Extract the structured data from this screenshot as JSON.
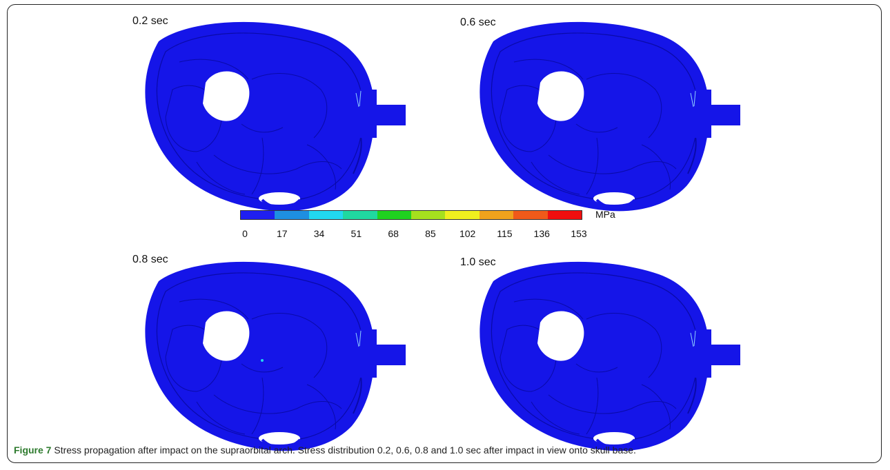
{
  "panels": [
    {
      "label": "0.2 sec"
    },
    {
      "label": "0.6 sec"
    },
    {
      "label": "0.8 sec"
    },
    {
      "label": "1.0 sec"
    }
  ],
  "colorbar": {
    "unit": "MPa",
    "ticks": [
      "0",
      "17",
      "34",
      "51",
      "68",
      "85",
      "102",
      "115",
      "136",
      "153"
    ],
    "colors": [
      "#1f1ff0",
      "#1e8fe0",
      "#22d8f0",
      "#20d8a0",
      "#1fd21f",
      "#a6e01e",
      "#f0ef1e",
      "#f0a21c",
      "#f05a1a",
      "#f00f0f"
    ]
  },
  "colors": {
    "skull": "#1515e8",
    "skull_dark": "#0a0aa8"
  },
  "caption": {
    "figure": "Figure 7",
    "text": " Stress propagation after impact on the supraorbital arch. Stress distribution 0.2, 0.6, 0.8 and 1.0 sec after impact in view onto skull base."
  }
}
